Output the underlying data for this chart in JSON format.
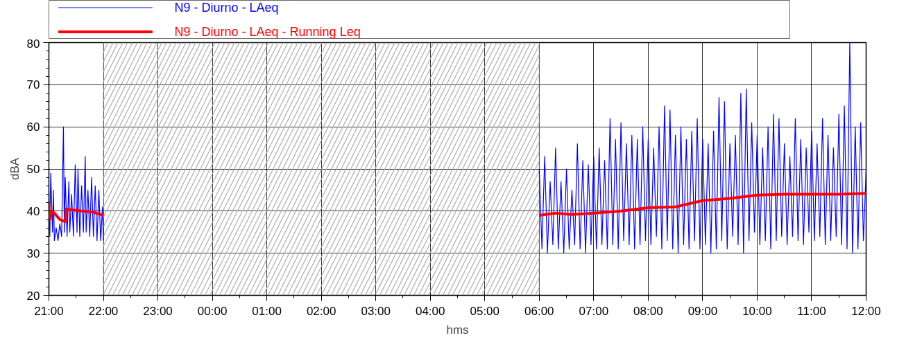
{
  "chart_data": {
    "type": "line",
    "xlabel": "hms",
    "ylabel": "dBA",
    "xlim": [
      "2000-01-01T21:00",
      "2000-01-02T12:00"
    ],
    "xticks": [
      {
        "value": "2000-01-01T21:00",
        "label": "21:00"
      },
      {
        "value": "2000-01-01T22:00",
        "label": "22:00"
      },
      {
        "value": "2000-01-01T23:00",
        "label": "23:00"
      },
      {
        "value": "2000-01-02T00:00",
        "label": "00:00"
      },
      {
        "value": "2000-01-02T01:00",
        "label": "01:00"
      },
      {
        "value": "2000-01-02T02:00",
        "label": "02:00"
      },
      {
        "value": "2000-01-02T03:00",
        "label": "03:00"
      },
      {
        "value": "2000-01-02T04:00",
        "label": "04:00"
      },
      {
        "value": "2000-01-02T05:00",
        "label": "05:00"
      },
      {
        "value": "2000-01-02T06:00",
        "label": "06:00"
      },
      {
        "value": "2000-01-02T07:00",
        "label": "07:00"
      },
      {
        "value": "2000-01-02T08:00",
        "label": "08:00"
      },
      {
        "value": "2000-01-02T09:00",
        "label": "09:00"
      },
      {
        "value": "2000-01-02T10:00",
        "label": "10:00"
      },
      {
        "value": "2000-01-02T11:00",
        "label": "11:00"
      },
      {
        "value": "2000-01-02T12:00",
        "label": "12:00"
      }
    ],
    "ylim": [
      20,
      80
    ],
    "yticks": [
      20,
      30,
      40,
      50,
      60,
      70,
      80
    ],
    "grid": true,
    "legend": "top",
    "marker": "none",
    "line_style": "solid",
    "bands": [
      {
        "axis": "x",
        "from": "2000-01-01T22:00",
        "to": "2000-01-02T06:00",
        "color": "#aaaaaa"
      }
    ],
    "series": [
      {
        "name": "N9 - Diurno - LAeq",
        "color": "#0000ff",
        "x": [
          "2000-01-01T21:00",
          "2000-01-01T21:01",
          "2000-01-01T21:02",
          "2000-01-01T21:04",
          "2000-01-01T21:05",
          "2000-01-01T21:06",
          "2000-01-01T21:08",
          "2000-01-01T21:10",
          "2000-01-01T21:12",
          "2000-01-01T21:14",
          "2000-01-01T21:16",
          "2000-01-01T21:17",
          "2000-01-01T21:18",
          "2000-01-01T21:20",
          "2000-01-01T21:22",
          "2000-01-01T21:23",
          "2000-01-01T21:25",
          "2000-01-01T21:27",
          "2000-01-01T21:29",
          "2000-01-01T21:31",
          "2000-01-01T21:32",
          "2000-01-01T21:34",
          "2000-01-01T21:36",
          "2000-01-01T21:38",
          "2000-01-01T21:40",
          "2000-01-01T21:41",
          "2000-01-01T21:43",
          "2000-01-01T21:45",
          "2000-01-01T21:47",
          "2000-01-01T21:49",
          "2000-01-01T21:51",
          "2000-01-01T21:53",
          "2000-01-01T21:55",
          "2000-01-01T21:57",
          "2000-01-01T21:59",
          "2000-01-01T22:00",
          "2000-01-02T02:00",
          "2000-01-02T06:00",
          "2000-01-02T06:03",
          "2000-01-02T06:06",
          "2000-01-02T06:09",
          "2000-01-02T06:12",
          "2000-01-02T06:15",
          "2000-01-02T06:18",
          "2000-01-02T06:21",
          "2000-01-02T06:24",
          "2000-01-02T06:27",
          "2000-01-02T06:30",
          "2000-01-02T06:33",
          "2000-01-02T06:36",
          "2000-01-02T06:39",
          "2000-01-02T06:42",
          "2000-01-02T06:45",
          "2000-01-02T06:48",
          "2000-01-02T06:51",
          "2000-01-02T06:54",
          "2000-01-02T06:57",
          "2000-01-02T07:00",
          "2000-01-02T07:03",
          "2000-01-02T07:06",
          "2000-01-02T07:09",
          "2000-01-02T07:12",
          "2000-01-02T07:15",
          "2000-01-02T07:18",
          "2000-01-02T07:21",
          "2000-01-02T07:24",
          "2000-01-02T07:27",
          "2000-01-02T07:30",
          "2000-01-02T07:33",
          "2000-01-02T07:36",
          "2000-01-02T07:39",
          "2000-01-02T07:42",
          "2000-01-02T07:45",
          "2000-01-02T07:48",
          "2000-01-02T07:51",
          "2000-01-02T07:54",
          "2000-01-02T07:57",
          "2000-01-02T08:00",
          "2000-01-02T08:03",
          "2000-01-02T08:06",
          "2000-01-02T08:09",
          "2000-01-02T08:12",
          "2000-01-02T08:15",
          "2000-01-02T08:18",
          "2000-01-02T08:21",
          "2000-01-02T08:24",
          "2000-01-02T08:27",
          "2000-01-02T08:30",
          "2000-01-02T08:33",
          "2000-01-02T08:36",
          "2000-01-02T08:39",
          "2000-01-02T08:42",
          "2000-01-02T08:45",
          "2000-01-02T08:48",
          "2000-01-02T08:51",
          "2000-01-02T08:54",
          "2000-01-02T08:57",
          "2000-01-02T09:00",
          "2000-01-02T09:03",
          "2000-01-02T09:06",
          "2000-01-02T09:09",
          "2000-01-02T09:12",
          "2000-01-02T09:15",
          "2000-01-02T09:18",
          "2000-01-02T09:21",
          "2000-01-02T09:24",
          "2000-01-02T09:27",
          "2000-01-02T09:30",
          "2000-01-02T09:33",
          "2000-01-02T09:36",
          "2000-01-02T09:39",
          "2000-01-02T09:42",
          "2000-01-02T09:45",
          "2000-01-02T09:48",
          "2000-01-02T09:51",
          "2000-01-02T09:54",
          "2000-01-02T09:57",
          "2000-01-02T10:00",
          "2000-01-02T10:03",
          "2000-01-02T10:06",
          "2000-01-02T10:09",
          "2000-01-02T10:12",
          "2000-01-02T10:15",
          "2000-01-02T10:18",
          "2000-01-02T10:21",
          "2000-01-02T10:24",
          "2000-01-02T10:27",
          "2000-01-02T10:30",
          "2000-01-02T10:33",
          "2000-01-02T10:36",
          "2000-01-02T10:39",
          "2000-01-02T10:42",
          "2000-01-02T10:45",
          "2000-01-02T10:48",
          "2000-01-02T10:51",
          "2000-01-02T10:54",
          "2000-01-02T10:57",
          "2000-01-02T11:00",
          "2000-01-02T11:03",
          "2000-01-02T11:06",
          "2000-01-02T11:09",
          "2000-01-02T11:12",
          "2000-01-02T11:15",
          "2000-01-02T11:18",
          "2000-01-02T11:21",
          "2000-01-02T11:24",
          "2000-01-02T11:27",
          "2000-01-02T11:30",
          "2000-01-02T11:33",
          "2000-01-02T11:36",
          "2000-01-02T11:39",
          "2000-01-02T11:42",
          "2000-01-02T11:45",
          "2000-01-02T11:48",
          "2000-01-02T11:51",
          "2000-01-02T11:54",
          "2000-01-02T11:57",
          "2000-01-02T12:00"
        ],
        "values": [
          45,
          34,
          49,
          35,
          45,
          33,
          36,
          33,
          37,
          34,
          60,
          35,
          48,
          34,
          47,
          35,
          44,
          34,
          51,
          35,
          50,
          34,
          46,
          35,
          53,
          35,
          45,
          34,
          48,
          34,
          46,
          33,
          45,
          33,
          41,
          33,
          null,
          50,
          31,
          53,
          30,
          47,
          32,
          55,
          31,
          47,
          30,
          50,
          31,
          45,
          32,
          56,
          31,
          52,
          30,
          51,
          32,
          53,
          31,
          55,
          32,
          52,
          31,
          62,
          32,
          57,
          31,
          61,
          33,
          56,
          32,
          58,
          31,
          57,
          32,
          60,
          33,
          57,
          32,
          55,
          34,
          60,
          31,
          65,
          33,
          64,
          31,
          58,
          30,
          60,
          32,
          57,
          31,
          59,
          33,
          62,
          31,
          57,
          32,
          56,
          30,
          59,
          31,
          67,
          33,
          66,
          31,
          56,
          34,
          58,
          32,
          68,
          30,
          69,
          33,
          61,
          35,
          58,
          32,
          55,
          33,
          60,
          31,
          63,
          33,
          62,
          34,
          56,
          32,
          53,
          34,
          62,
          33,
          57,
          32,
          55,
          35,
          59,
          33,
          56,
          34,
          62,
          32,
          58,
          33,
          55,
          34,
          63,
          32,
          65,
          31,
          80,
          30,
          60,
          31,
          61,
          33,
          50
        ]
      },
      {
        "name": "N9 - Diurno - LAeq - Running Leq",
        "color": "#ff0000",
        "x": [
          "2000-01-01T21:00",
          "2000-01-01T21:01",
          "2000-01-01T21:03",
          "2000-01-01T21:06",
          "2000-01-01T21:12",
          "2000-01-01T21:18",
          "2000-01-01T21:19",
          "2000-01-01T21:24",
          "2000-01-01T21:36",
          "2000-01-01T21:48",
          "2000-01-01T22:00",
          "2000-01-02T02:00",
          "2000-01-02T06:00",
          "2000-01-02T06:18",
          "2000-01-02T06:36",
          "2000-01-02T07:00",
          "2000-01-02T07:30",
          "2000-01-02T08:00",
          "2000-01-02T08:30",
          "2000-01-02T09:00",
          "2000-01-02T09:30",
          "2000-01-02T10:00",
          "2000-01-02T10:30",
          "2000-01-02T11:00",
          "2000-01-02T11:30",
          "2000-01-02T12:00"
        ],
        "values": [
          42,
          38,
          40,
          39.5,
          38,
          37.5,
          40.5,
          40.3,
          40,
          39.8,
          39,
          null,
          39,
          39.5,
          39.2,
          39.5,
          40,
          40.8,
          41,
          42.5,
          43,
          43.8,
          44,
          44,
          44,
          44.2
        ]
      }
    ]
  }
}
